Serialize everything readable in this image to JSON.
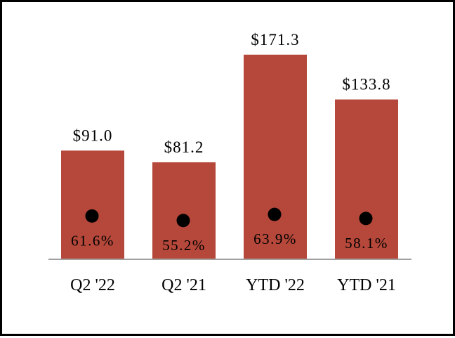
{
  "chart_data": {
    "type": "bar",
    "categories": [
      "Q2 '22",
      "Q2 '21",
      "YTD '22",
      "YTD '21"
    ],
    "values": [
      91.0,
      81.2,
      171.3,
      133.8
    ],
    "value_labels": [
      "$91.0",
      "$81.2",
      "$171.3",
      "$133.8"
    ],
    "percent_values": [
      61.6,
      55.2,
      63.9,
      58.1
    ],
    "percent_labels": [
      "61.6%",
      "55.2%",
      "63.9%",
      "58.1%"
    ],
    "title": "",
    "xlabel": "",
    "ylabel": "",
    "ylim": [
      0,
      200
    ],
    "grid": false,
    "legend": "none",
    "bar_color": "#b5483a",
    "marker_color": "#000000"
  }
}
